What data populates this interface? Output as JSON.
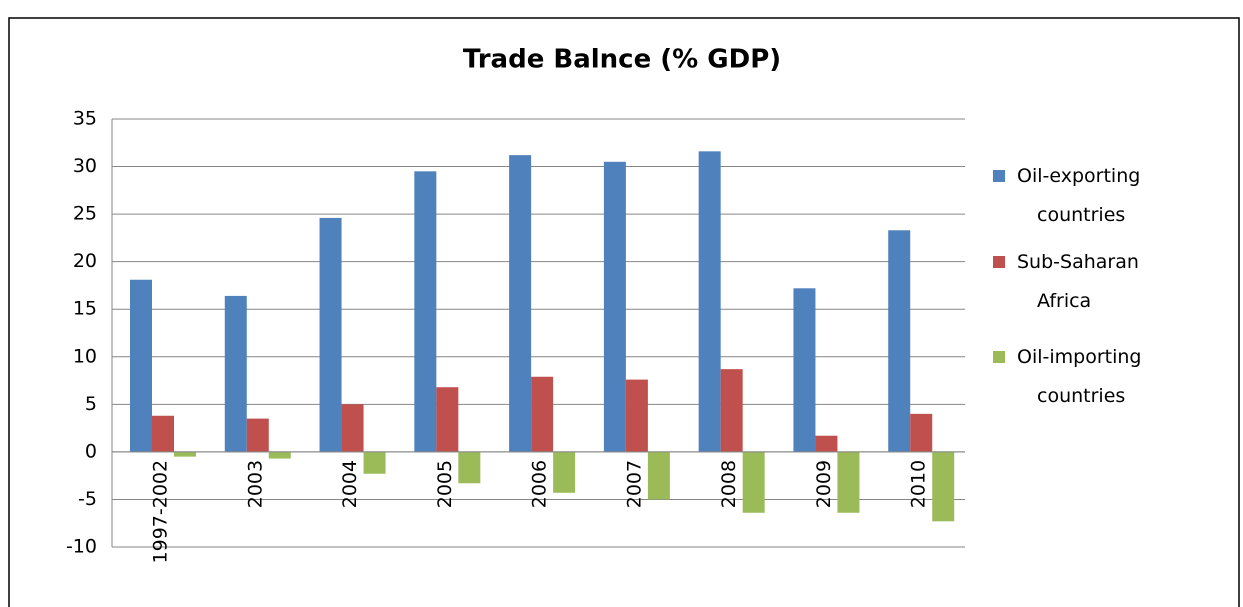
{
  "chart_data": {
    "type": "bar",
    "title": "Trade Balnce (% GDP)",
    "categories": [
      "1997-2002",
      "2003",
      "2004",
      "2005",
      "2006",
      "2007",
      "2008",
      "2009",
      "2010"
    ],
    "series": [
      {
        "name": "Oil-exporting countries",
        "color": "#4f81bd",
        "values": [
          18.1,
          16.4,
          24.6,
          29.5,
          31.2,
          30.5,
          31.6,
          17.2,
          23.3
        ]
      },
      {
        "name": "Sub-Saharan Africa",
        "color": "#c0504d",
        "values": [
          3.8,
          3.5,
          5.0,
          6.8,
          7.9,
          7.6,
          8.7,
          1.7,
          4.0
        ]
      },
      {
        "name": "Oil-importing countries",
        "color": "#9bbb59",
        "values": [
          -0.5,
          -0.7,
          -2.3,
          -3.3,
          -4.3,
          -5.0,
          -6.4,
          -6.4,
          -7.3
        ]
      }
    ],
    "ylim": [
      -10,
      35
    ],
    "yticks": [
      -10,
      -5,
      0,
      5,
      10,
      15,
      20,
      25,
      30,
      35
    ],
    "grid": true,
    "legend": "right"
  }
}
